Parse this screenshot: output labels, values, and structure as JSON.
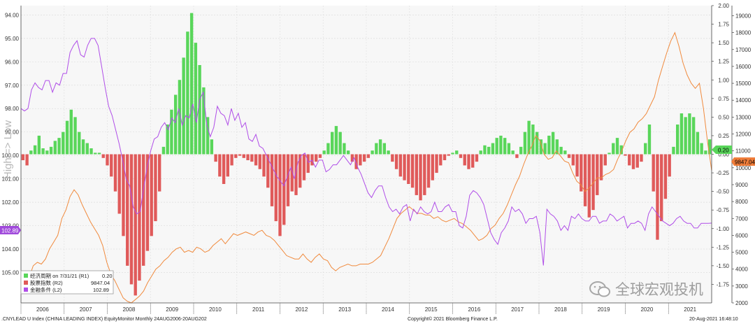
{
  "chart_data": {
    "type": "bar",
    "y_left_ticks": [
      "94.00",
      "95.00",
      "96.00",
      "97.00",
      "98.00",
      "99.00",
      "100.00",
      "101.00",
      "102.00",
      "103.00",
      "104.00",
      "105.00"
    ],
    "y_left_axis_label": "High => Low",
    "y_right1_ticks": [
      "2.00",
      "1.75",
      "1.50",
      "1.25",
      "1.00",
      "0.75",
      "0.50",
      "0.25",
      "0.00",
      "-0.25",
      "-0.50",
      "-0.75",
      "-1.00",
      "-1.25",
      "-1.50",
      "-1.75"
    ],
    "y_right2_ticks": [
      "19000",
      "18000",
      "17000",
      "16000",
      "15000",
      "14000",
      "13000",
      "12000",
      "11000",
      "10000",
      "9000",
      "8000",
      "7000",
      "6000",
      "5000",
      "4000",
      "3000",
      "2000"
    ],
    "x_ticks": [
      "2006",
      "2007",
      "2008",
      "2009",
      "2010",
      "2011",
      "2012",
      "2013",
      "2014",
      "2015",
      "2016",
      "2017",
      "2018",
      "2019",
      "2020",
      "2021"
    ],
    "ylim_left": [
      93.6,
      106.3
    ],
    "ylim_r1": [
      -2.0,
      2.0
    ],
    "ylim_r2": [
      2000,
      19600
    ],
    "tags": {
      "r1_value": "0.20",
      "r1_color": "#59d65a",
      "r2_value": "9847.04",
      "r2_color": "#f07d3a",
      "l2_value": "102.89",
      "l2_color": "#a04adb"
    },
    "colors": {
      "growth_pos": "#59d65a",
      "growth_neg": "#e05a5a",
      "stock": "#f08a3d",
      "financial": "#b04ee8"
    },
    "legend": [
      {
        "label": "经济周期 on 7/31/21 (R1)",
        "value": "0.20",
        "color": "#59d65a"
      },
      {
        "label": "股票指数 (R2)",
        "value": "9847.04",
        "color": "#e05a5a"
      },
      {
        "label": "金融条件 (L2)",
        "value": "102.89",
        "color": "#b04ee8"
      }
    ],
    "growth_cycle_bars": [
      -0.08,
      -0.15,
      0.05,
      0.12,
      0.25,
      0.08,
      0.05,
      0.1,
      0.18,
      0.22,
      0.3,
      0.45,
      0.6,
      0.5,
      0.3,
      0.2,
      0.15,
      0.08,
      0.02,
      0.02,
      -0.05,
      -0.15,
      -0.3,
      -0.5,
      -0.8,
      -1.1,
      -1.5,
      -1.75,
      -1.9,
      -1.7,
      -1.5,
      -1.3,
      -1.1,
      -0.9,
      -0.5,
      0.1,
      0.4,
      0.6,
      0.8,
      1.0,
      1.3,
      1.65,
      1.9,
      1.5,
      1.2,
      0.9,
      0.5,
      0.2,
      -0.1,
      -0.3,
      -0.4,
      -0.3,
      -0.15,
      -0.05,
      -0.02,
      -0.05,
      -0.08,
      -0.1,
      -0.15,
      -0.2,
      -0.3,
      -0.45,
      -0.7,
      -0.9,
      -1.1,
      -0.95,
      -0.7,
      -0.5,
      -0.55,
      -0.45,
      -0.35,
      -0.25,
      -0.15,
      -0.1,
      -0.05,
      0.05,
      0.15,
      0.3,
      0.38,
      0.3,
      0.15,
      0.05,
      -0.1,
      -0.2,
      -0.15,
      -0.1,
      -0.05,
      0.05,
      0.15,
      0.2,
      0.15,
      0.05,
      -0.1,
      -0.2,
      -0.3,
      -0.35,
      -0.4,
      -0.45,
      -0.55,
      -0.62,
      -0.55,
      -0.45,
      -0.35,
      -0.25,
      -0.15,
      -0.08,
      -0.02,
      0.02,
      0.05,
      -0.05,
      -0.15,
      -0.2,
      -0.18,
      -0.1,
      0.05,
      0.12,
      0.1,
      0.15,
      0.22,
      0.25,
      0.22,
      0.15,
      0.05,
      -0.05,
      0.1,
      0.3,
      0.45,
      0.4,
      0.3,
      0.2,
      0.15,
      0.25,
      0.3,
      0.2,
      0.1,
      0.05,
      -0.05,
      -0.15,
      -0.3,
      -0.5,
      -0.7,
      -0.85,
      -0.75,
      -0.55,
      -0.35,
      -0.15,
      0.02,
      0.15,
      0.22,
      0.12,
      -0.02,
      -0.15,
      -0.2,
      -0.18,
      -0.1,
      0.15,
      0.4,
      -0.5,
      -1.15,
      -0.9,
      -0.6,
      -0.3,
      0.1,
      0.4,
      0.55,
      0.5,
      0.55,
      0.5,
      0.3,
      0.15,
      0.05,
      0.2
    ],
    "financial_conditions_l2": [
      98.0,
      98.1,
      98.0,
      97.2,
      96.9,
      97.1,
      97.2,
      96.8,
      96.8,
      97.3,
      96.9,
      97.0,
      96.5,
      96.5,
      95.6,
      95.3,
      95.1,
      95.7,
      95.8,
      95.3,
      95.0,
      95.0,
      95.3,
      96.2,
      97.1,
      97.9,
      98.3,
      98.9,
      99.5,
      100.2,
      101.0,
      101.3,
      102.2,
      102.5,
      102.4,
      101.4,
      100.5,
      99.8,
      99.3,
      99.2,
      98.8,
      98.6,
      98.9,
      98.4,
      98.6,
      98.0,
      98.7,
      98.3,
      98.4,
      97.8,
      98.6,
      97.6,
      97.3,
      98.7,
      99.2,
      98.8,
      97.9,
      98.2,
      98.3,
      98.7,
      98.0,
      98.5,
      98.2,
      98.8,
      98.6,
      99.3,
      99.4,
      99.1,
      99.6,
      99.7,
      100.0,
      100.3,
      100.6,
      100.9,
      101.1,
      101.3,
      100.9,
      100.5,
      101.0,
      100.3,
      100.0,
      99.9,
      100.3,
      100.2,
      100.5,
      100.2,
      100.2,
      100.7,
      100.6,
      100.4,
      100.4,
      100.2,
      100.0,
      100.2,
      100.4,
      100.1,
      100.5,
      100.8,
      101.2,
      101.6,
      101.8,
      101.5,
      101.3,
      101.3,
      101.8,
      102.2,
      102.4,
      102.3,
      102.5,
      102.2,
      102.1,
      102.8,
      102.3,
      102.5,
      102.2,
      102.4,
      102.5,
      102.4,
      102.0,
      102.4,
      102.4,
      102.2,
      102.1,
      102.4,
      102.4,
      103.0,
      103.1,
      102.6,
      101.7,
      101.5,
      101.6,
      101.8,
      102.1,
      102.7,
      103.3,
      103.6,
      103.8,
      103.3,
      103.1,
      102.8,
      102.2,
      102.4,
      102.3,
      102.5,
      102.9,
      102.7,
      102.7,
      102.6,
      103.3,
      104.7,
      102.3,
      102.5,
      102.6,
      102.8,
      103.2,
      103.0,
      103.2,
      102.6,
      102.7,
      102.5,
      102.7,
      102.8,
      102.8,
      102.6,
      102.6,
      102.9,
      102.8,
      102.8,
      102.5,
      102.6,
      102.8,
      102.7,
      102.6,
      103.1,
      102.9,
      102.9,
      102.8,
      102.9,
      103.2,
      102.5,
      102.2,
      102.4,
      102.6,
      102.8,
      102.9,
      103.0,
      102.9,
      102.7,
      102.6,
      102.8,
      102.9,
      102.9,
      103.1,
      103.1,
      102.9,
      102.9,
      102.9,
      102.89
    ],
    "stock_index_r2": [
      3100,
      3300,
      3500,
      4200,
      4400,
      4300,
      4600,
      5200,
      5600,
      6000,
      7000,
      7500,
      8300,
      8700,
      8400,
      7800,
      7300,
      6800,
      6400,
      6000,
      5400,
      4400,
      3700,
      3300,
      2800,
      2300,
      2100,
      2000,
      2200,
      2400,
      2700,
      3200,
      3600,
      4000,
      4200,
      4500,
      4700,
      5000,
      5200,
      5300,
      5000,
      5100,
      5000,
      5300,
      5200,
      5000,
      5100,
      5400,
      5600,
      5800,
      5500,
      5800,
      6100,
      6000,
      6100,
      6200,
      6100,
      6000,
      6200,
      6300,
      6000,
      5900,
      5700,
      5400,
      5100,
      4800,
      4700,
      4600,
      4600,
      4900,
      4600,
      4400,
      4700,
      4900,
      4600,
      4500,
      4100,
      3900,
      4100,
      4200,
      4300,
      4200,
      4200,
      4300,
      4300,
      4300,
      4400,
      4600,
      4800,
      5300,
      5800,
      6400,
      7000,
      7300,
      7500,
      7700,
      7500,
      7300,
      7300,
      7200,
      7200,
      7000,
      7100,
      6900,
      6800,
      6900,
      7000,
      6800,
      6700,
      6500,
      6300,
      6000,
      5700,
      5800,
      6000,
      6400,
      6600,
      7000,
      7300,
      7800,
      8400,
      9000,
      9500,
      10200,
      10800,
      11300,
      11900,
      11600,
      10800,
      10500,
      10600,
      11000,
      10700,
      10400,
      10300,
      9700,
      9200,
      9000,
      8600,
      8800,
      9100,
      9400,
      9400,
      9600,
      9700,
      9900,
      10500,
      11000,
      11600,
      12100,
      12300,
      12700,
      12900,
      13200,
      13700,
      14200,
      15200,
      16000,
      16800,
      17500,
      18000,
      17200,
      16200,
      15500,
      15000,
      14700,
      15000,
      13500,
      11500,
      9847
    ],
    "footer": {
      "left": ".CNYLEAD U Index (CHINA LEADING INDEX) EquityMonitor Monthly 24AUG2006-20AUG202",
      "center": "Copyright© 2021 Bloomberg Finance L.P.",
      "right": "20-Aug-2021 16:48:10"
    },
    "watermark": "全球宏观投机"
  }
}
